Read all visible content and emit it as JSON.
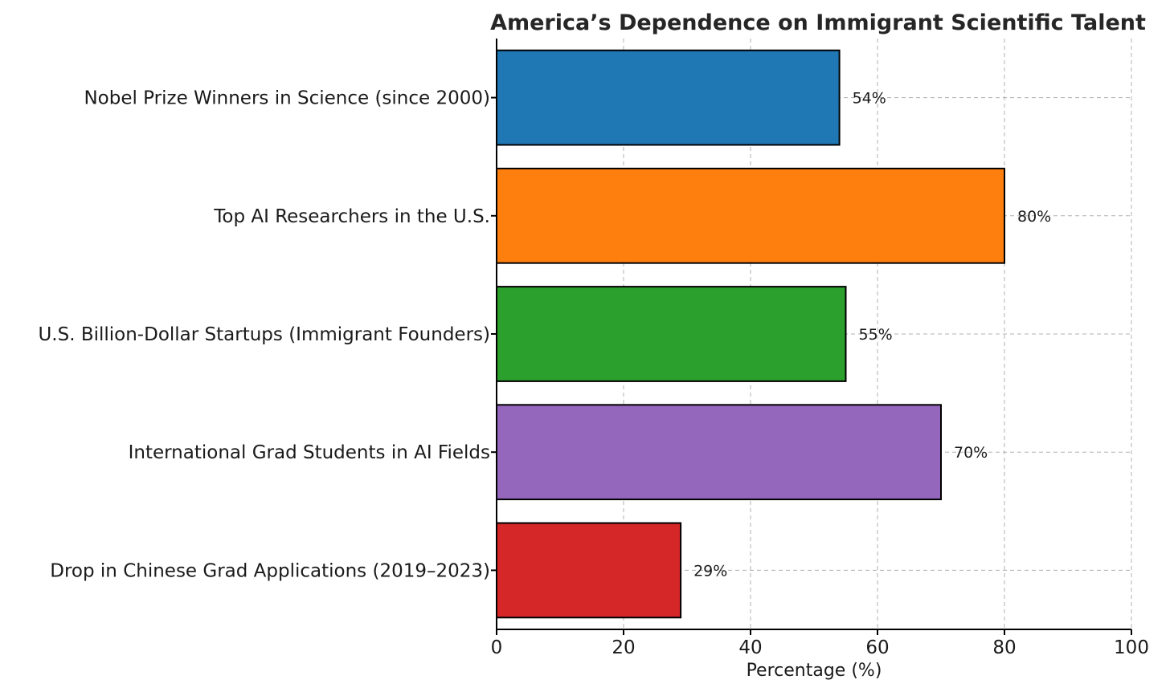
{
  "chart_data": {
    "type": "bar",
    "orientation": "horizontal",
    "title": "America’s Dependence on Immigrant Scientific Talent",
    "xlabel": "Percentage (%)",
    "ylabel": "",
    "xlim": [
      0,
      100
    ],
    "xticks": [
      0,
      20,
      40,
      60,
      80,
      100
    ],
    "xtick_labels": [
      "0",
      "20",
      "40",
      "60",
      "80",
      "100"
    ],
    "grid": true,
    "categories": [
      "Nobel Prize Winners in Science (since 2000)",
      "Top AI Researchers in the U.S.",
      "U.S. Billion-Dollar Startups (Immigrant Founders)",
      "International Grad Students in AI Fields",
      "Drop in Chinese Grad Applications (2019–2023)"
    ],
    "values": [
      54,
      80,
      55,
      70,
      29
    ],
    "value_labels": [
      "54%",
      "80%",
      "55%",
      "70%",
      "29%"
    ],
    "colors": [
      "#1f77b4",
      "#ff7f0e",
      "#2ca02c",
      "#9467bd",
      "#d62728"
    ]
  }
}
